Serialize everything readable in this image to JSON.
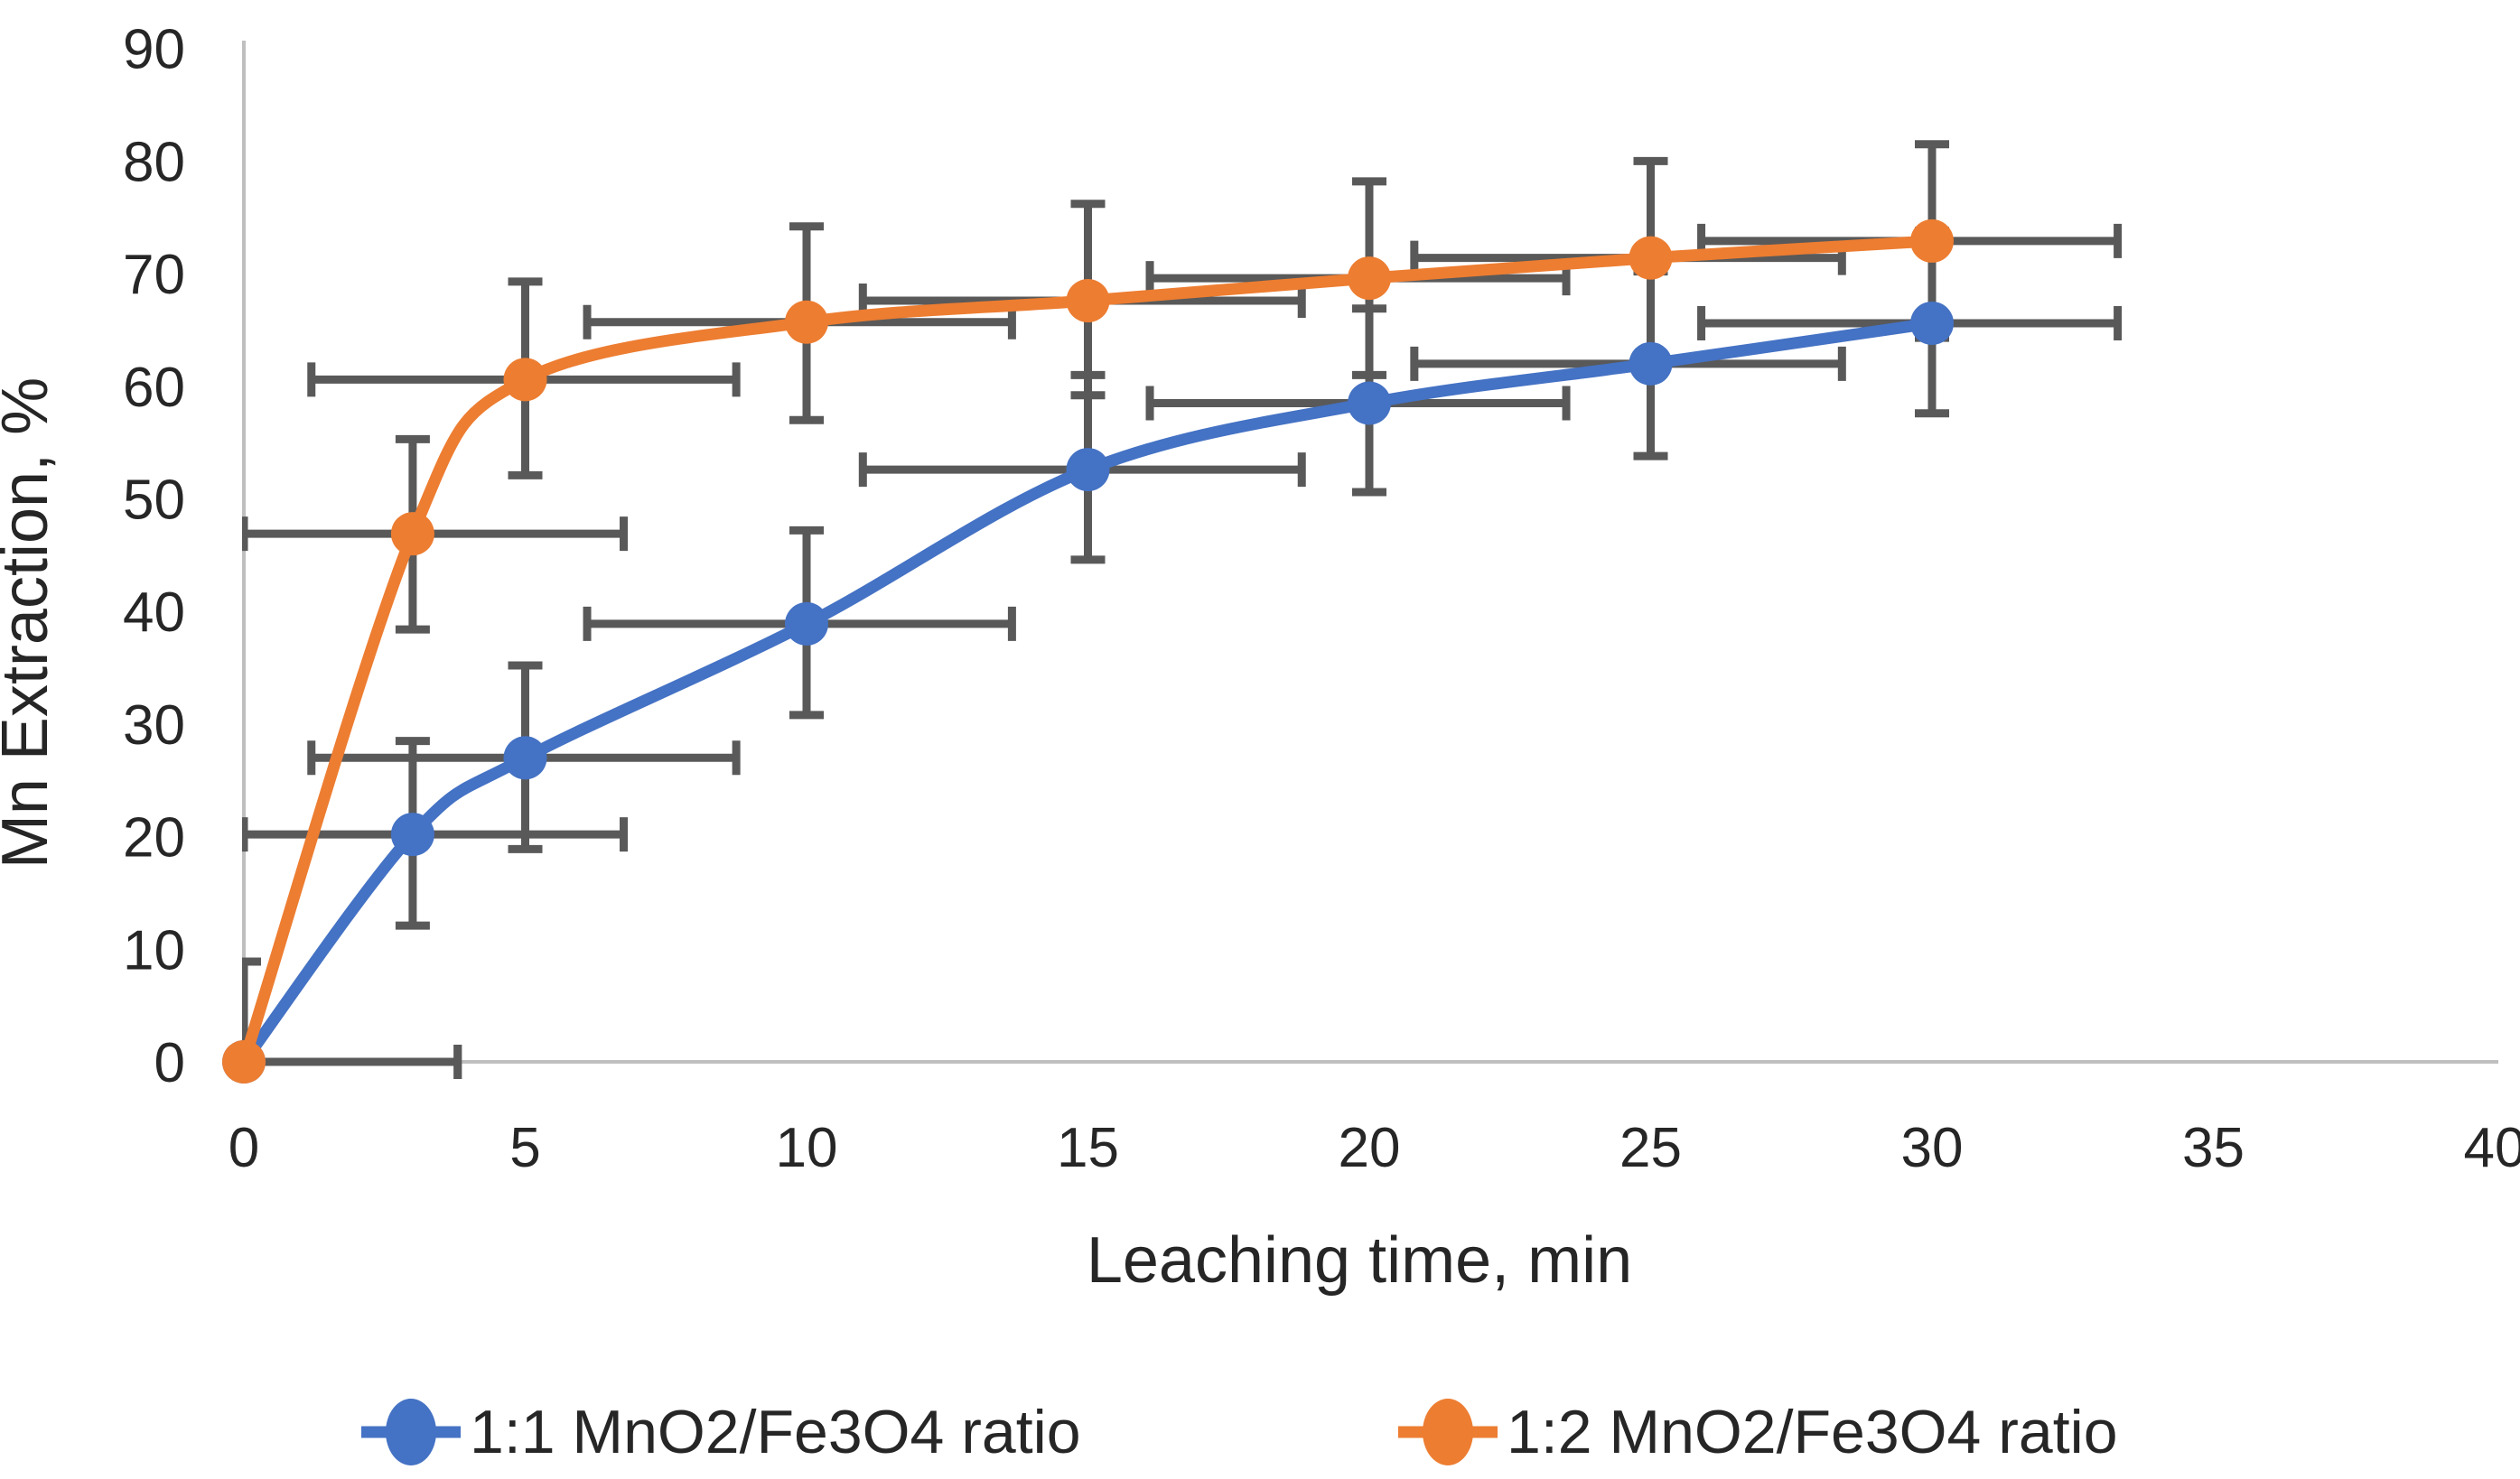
{
  "chart_data": {
    "type": "line",
    "title": "",
    "xlabel": "Leaching time, min",
    "ylabel": "Mn Extraction, %",
    "xlim": [
      0,
      40
    ],
    "ylim": [
      0,
      90
    ],
    "x_ticks": [
      0,
      5,
      10,
      15,
      20,
      25,
      30,
      35,
      40
    ],
    "y_ticks": [
      0,
      10,
      20,
      30,
      40,
      50,
      60,
      70,
      80,
      90
    ],
    "grid": false,
    "legend_position": "bottom",
    "marker": "circle",
    "line_style": "smooth",
    "error_bar_color": "#595959",
    "axis_line_color": "#BFBFBF",
    "series": [
      {
        "name": "1:1 MnO2/Fe3O4 ratio",
        "color": "#4472C4",
        "points": [
          {
            "x": 0,
            "y": 0,
            "ey": [
              0,
              8.9
            ],
            "ex": [
              0,
              3.8
            ]
          },
          {
            "x": 3,
            "y": 20.2,
            "ey": [
              12.1,
              28.5
            ],
            "ex": [
              0,
              6.75
            ]
          },
          {
            "x": 5,
            "y": 27.0,
            "ey": [
              18.9,
              35.2
            ],
            "ex": [
              1.2,
              8.75
            ]
          },
          {
            "x": 10,
            "y": 38.9,
            "ey": [
              30.8,
              47.2
            ],
            "ex": [
              6.1,
              13.65
            ]
          },
          {
            "x": 15,
            "y": 52.6,
            "ey": [
              44.6,
              61.0
            ],
            "ex": [
              11.0,
              18.8
            ]
          },
          {
            "x": 20,
            "y": 58.5,
            "ey": [
              50.6,
              66.9
            ],
            "ex": [
              16.1,
              23.5
            ]
          },
          {
            "x": 25,
            "y": 62.0,
            "ey": [
              53.8,
              70.2
            ],
            "ex": [
              20.8,
              28.4
            ]
          },
          {
            "x": 30,
            "y": 65.6,
            "ey": [
              57.6,
              73.8
            ],
            "ex": [
              25.9,
              33.3
            ]
          }
        ]
      },
      {
        "name": "1:2 MnO2/Fe3O4 ratio",
        "color": "#ED7D31",
        "points": [
          {
            "x": 0,
            "y": 0,
            "ey": [
              0,
              8.9
            ],
            "ex": [
              0,
              3.8
            ]
          },
          {
            "x": 3,
            "y": 46.9,
            "ey": [
              38.4,
              55.3
            ],
            "ex": [
              0,
              6.75
            ]
          },
          {
            "x": 5,
            "y": 60.6,
            "ey": [
              52.1,
              69.3
            ],
            "ex": [
              1.2,
              8.75
            ]
          },
          {
            "x": 10,
            "y": 65.7,
            "ey": [
              57.0,
              74.2
            ],
            "ex": [
              6.1,
              13.65
            ]
          },
          {
            "x": 15,
            "y": 67.6,
            "ey": [
              59.2,
              76.2
            ],
            "ex": [
              11.0,
              18.8
            ]
          },
          {
            "x": 20,
            "y": 69.6,
            "ey": [
              61.0,
              78.2
            ],
            "ex": [
              16.1,
              23.5
            ]
          },
          {
            "x": 25,
            "y": 71.4,
            "ey": [
              62.8,
              80.0
            ],
            "ex": [
              20.8,
              28.4
            ]
          },
          {
            "x": 30,
            "y": 72.9,
            "ey": [
              64.3,
              81.5
            ],
            "ex": [
              25.9,
              33.3
            ]
          }
        ]
      }
    ],
    "legend": [
      {
        "label": "1:1 MnO2/Fe3O4 ratio",
        "color": "#4472C4"
      },
      {
        "label": "1:2 MnO2/Fe3O4 ratio",
        "color": "#ED7D31"
      }
    ]
  }
}
